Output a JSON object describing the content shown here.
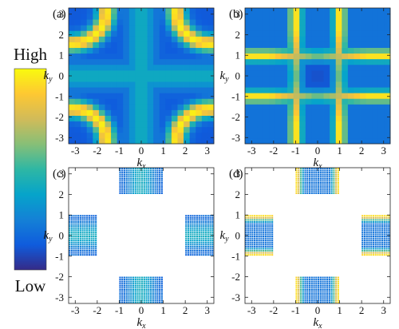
{
  "colorbar": {
    "high_label": "High",
    "low_label": "Low",
    "stops": [
      "#352a87",
      "#0f5cdd",
      "#1481d6",
      "#06a4ca",
      "#2eb7a4",
      "#87bf77",
      "#d1bb59",
      "#fec832",
      "#f9fb0e"
    ]
  },
  "axes": {
    "x_label_base": "k",
    "x_label_sub": "x",
    "y_label_base": "k",
    "y_label_sub": "y",
    "ticks": [
      -3,
      -2,
      -1,
      0,
      1,
      2,
      3
    ],
    "tick_labels": [
      "-3",
      "-2",
      "-1",
      "0",
      "1",
      "2",
      "3"
    ],
    "xlim": [
      -3.3,
      3.3
    ],
    "ylim": [
      -3.3,
      3.3
    ]
  },
  "chart_data": [
    {
      "type": "heatmap",
      "panel_label": "(a)",
      "xlabel": "kx",
      "ylabel": "ky",
      "xlim": [
        -3.3,
        3.3
      ],
      "ylim": [
        -3.3,
        3.3
      ],
      "grid": false,
      "pattern": "four-rings",
      "region": "full"
    },
    {
      "type": "heatmap",
      "panel_label": "(b)",
      "xlabel": "kx",
      "ylabel": "ky",
      "xlim": [
        -3.3,
        3.3
      ],
      "ylim": [
        -3.3,
        3.3
      ],
      "grid": false,
      "pattern": "cross-bands",
      "region": "full"
    },
    {
      "type": "heatmap",
      "panel_label": "(c)",
      "xlabel": "kx",
      "ylabel": "ky",
      "xlim": [
        -3.3,
        3.3
      ],
      "ylim": [
        -3.3,
        3.3
      ],
      "grid": false,
      "pattern": "four-rings",
      "region": "edge-patches"
    },
    {
      "type": "heatmap",
      "panel_label": "(d)",
      "xlabel": "kx",
      "ylabel": "ky",
      "xlim": [
        -3.3,
        3.3
      ],
      "ylim": [
        -3.3,
        3.3
      ],
      "grid": false,
      "pattern": "cross-bands",
      "region": "edge-patches"
    }
  ],
  "edge_patches": [
    {
      "x": [
        -1.0,
        1.0
      ],
      "y": [
        2.0,
        3.3
      ]
    },
    {
      "x": [
        -1.0,
        1.0
      ],
      "y": [
        -3.3,
        -2.0
      ]
    },
    {
      "x": [
        -3.3,
        -2.0
      ],
      "y": [
        -1.0,
        1.0
      ]
    },
    {
      "x": [
        2.0,
        3.3
      ],
      "y": [
        -1.0,
        1.0
      ]
    }
  ]
}
